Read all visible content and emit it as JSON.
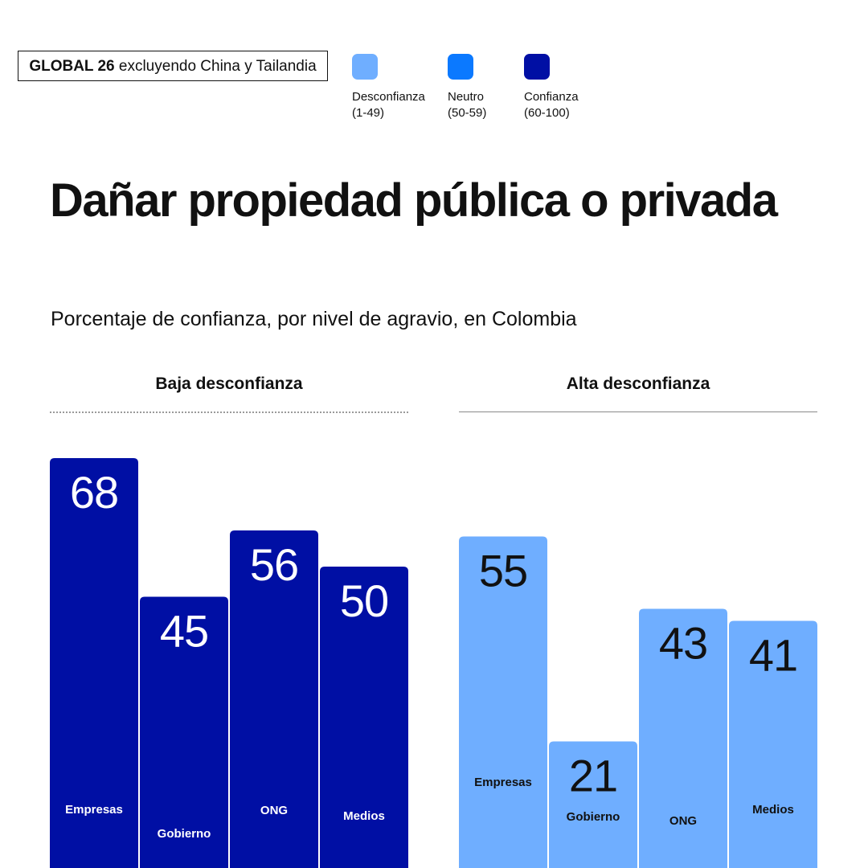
{
  "header": {
    "scope_bold": "GLOBAL 26",
    "scope_rest": "excluyendo China y Tailandia"
  },
  "legend": [
    {
      "label": "Desconfianza",
      "range": "(1-49)",
      "color": "#6FAEFF",
      "icon": "distrust-swatch"
    },
    {
      "label": "Neutro",
      "range": "(50-59)",
      "color": "#0B79FF",
      "icon": "neutral-swatch"
    },
    {
      "label": "Confianza",
      "range": "(60-100)",
      "color": "#000FA4",
      "icon": "trust-swatch"
    }
  ],
  "title": "Dañar propiedad pública o privada",
  "subtitle": "Porcentaje de confianza, por nivel de agravio, en Colombia",
  "chart_data": [
    {
      "type": "bar",
      "title": "Baja desconfianza",
      "categories": [
        "Empresas",
        "Gobierno",
        "ONG",
        "Medios"
      ],
      "values": [
        68,
        45,
        56,
        50
      ],
      "color": "#000FA4",
      "value_label_color": "#ffffff",
      "category_label_color": "#ffffff",
      "rule_style": "dotted"
    },
    {
      "type": "bar",
      "title": "Alta desconfianza",
      "categories": [
        "Empresas",
        "Gobierno",
        "ONG",
        "Medios"
      ],
      "values": [
        55,
        21,
        43,
        41
      ],
      "color": "#6FAEFF",
      "value_label_color": "#111111",
      "category_label_color": "#111111",
      "rule_style": "solid"
    }
  ]
}
